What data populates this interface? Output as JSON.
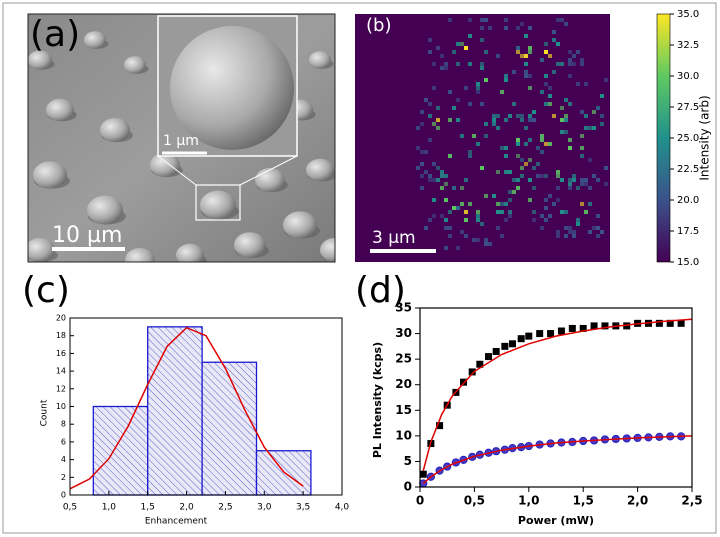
{
  "image_a": {
    "label": "(a)",
    "scale_bar": "10 µm",
    "inset_scale_bar": "1 µm"
  },
  "image_b": {
    "label": "(b)",
    "scale_bar": "3 µm"
  },
  "chart_data": [
    {
      "type": "colorbar",
      "ylabel": "Intensity (arb)",
      "ylim": [
        15,
        35
      ],
      "yticks": [
        {
          "value": 15,
          "label": "15.0"
        },
        {
          "value": 17.5,
          "label": "17.5"
        },
        {
          "value": 20,
          "label": "20.0"
        },
        {
          "value": 22.5,
          "label": "22.5"
        },
        {
          "value": 25,
          "label": "25.0"
        },
        {
          "value": 27.5,
          "label": "27.5"
        },
        {
          "value": 30,
          "label": "30.0"
        },
        {
          "value": 32.5,
          "label": "32.5"
        },
        {
          "value": 35,
          "label": "35.0"
        }
      ]
    },
    {
      "type": "histogram",
      "title": "(c)",
      "xlabel": "Enhancement",
      "ylabel": "Count",
      "bins": [
        0.8,
        1.5,
        2.2,
        2.9,
        3.6
      ],
      "values": [
        10,
        19,
        15,
        5
      ],
      "color": "#1a1ad0",
      "fit": {
        "color": "#e00000",
        "x": [
          0.5,
          0.75,
          1.0,
          1.25,
          1.5,
          1.75,
          2.0,
          2.25,
          2.5,
          2.75,
          3.0,
          3.25,
          3.5
        ],
        "values": [
          0.7,
          1.8,
          4.1,
          7.8,
          12.5,
          16.8,
          18.9,
          18.0,
          14.3,
          9.6,
          5.4,
          2.6,
          1.0
        ]
      },
      "xlim": [
        0.5,
        4.0
      ],
      "xticks": [
        {
          "value": 0.5,
          "label": "0,5"
        },
        {
          "value": 1.0,
          "label": "1,0"
        },
        {
          "value": 1.5,
          "label": "1,5"
        },
        {
          "value": 2.0,
          "label": "2,0"
        },
        {
          "value": 2.5,
          "label": "2,5"
        },
        {
          "value": 3.0,
          "label": "3,0"
        },
        {
          "value": 3.5,
          "label": "3,5"
        },
        {
          "value": 4.0,
          "label": "4,0"
        }
      ],
      "ylim": [
        0,
        20
      ],
      "yticks": [
        0,
        2,
        4,
        6,
        8,
        10,
        12,
        14,
        16,
        18,
        20
      ]
    },
    {
      "type": "scatter",
      "title": "(d)",
      "xlabel": "Power (mW)",
      "ylabel": "PL Intensity (kcps)",
      "xlim": [
        0,
        2.5
      ],
      "xticks": [
        0,
        {
          "value": 0.5,
          "label": "0,5"
        },
        {
          "value": 1.0,
          "label": "1,0"
        },
        {
          "value": 1.5,
          "label": "1,5"
        },
        {
          "value": 2.0,
          "label": "2,0"
        },
        {
          "value": 2.5,
          "label": "2,5"
        }
      ],
      "ylim": [
        0,
        35
      ],
      "yticks": [
        0,
        5,
        10,
        15,
        20,
        25,
        30,
        35
      ],
      "series": [
        {
          "color": "#000000",
          "marker": "square",
          "x": [
            0.03,
            0.1,
            0.18,
            0.25,
            0.33,
            0.4,
            0.48,
            0.55,
            0.63,
            0.7,
            0.78,
            0.85,
            0.93,
            1.0,
            1.1,
            1.2,
            1.3,
            1.4,
            1.5,
            1.6,
            1.7,
            1.8,
            1.9,
            2.0,
            2.1,
            2.2,
            2.3,
            2.4
          ],
          "values": [
            2.5,
            8.5,
            12,
            16,
            18.5,
            20.5,
            22.5,
            24,
            25.5,
            26.5,
            27.5,
            28,
            29,
            29.5,
            30,
            30,
            30.5,
            31,
            31,
            31.5,
            31.5,
            31.5,
            31.5,
            32,
            32,
            32,
            32,
            32
          ]
        },
        {
          "color": "#4b3bbf",
          "marker": "circle",
          "x": [
            0.03,
            0.1,
            0.18,
            0.25,
            0.33,
            0.4,
            0.48,
            0.55,
            0.63,
            0.7,
            0.78,
            0.85,
            0.93,
            1.0,
            1.1,
            1.2,
            1.3,
            1.4,
            1.5,
            1.6,
            1.7,
            1.8,
            1.9,
            2.0,
            2.1,
            2.2,
            2.3,
            2.4
          ],
          "values": [
            0.7,
            2.0,
            3.2,
            4.0,
            4.8,
            5.3,
            5.9,
            6.3,
            6.7,
            7.0,
            7.3,
            7.6,
            7.8,
            8.0,
            8.3,
            8.5,
            8.7,
            8.8,
            9.0,
            9.1,
            9.3,
            9.4,
            9.5,
            9.6,
            9.7,
            9.8,
            9.9,
            9.9
          ]
        },
        {
          "color": "#e00000",
          "marker": "line",
          "x": [
            0.03,
            0.1,
            0.2,
            0.3,
            0.5,
            0.75,
            1.0,
            1.25,
            1.5,
            1.75,
            2.0,
            2.25,
            2.5
          ],
          "values": [
            3.2,
            8.8,
            14.2,
            17.9,
            22.6,
            25.9,
            28.0,
            29.5,
            30.5,
            31.3,
            31.9,
            32.4,
            32.8
          ]
        },
        {
          "color": "#e00000",
          "marker": "line",
          "x": [
            0.03,
            0.1,
            0.2,
            0.3,
            0.5,
            0.75,
            1.0,
            1.25,
            1.5,
            1.75,
            2.0,
            2.25,
            2.5
          ],
          "values": [
            0.7,
            2.0,
            3.4,
            4.5,
            6.0,
            7.2,
            8.0,
            8.6,
            9.0,
            9.3,
            9.6,
            9.8,
            10.0
          ]
        }
      ]
    }
  ]
}
